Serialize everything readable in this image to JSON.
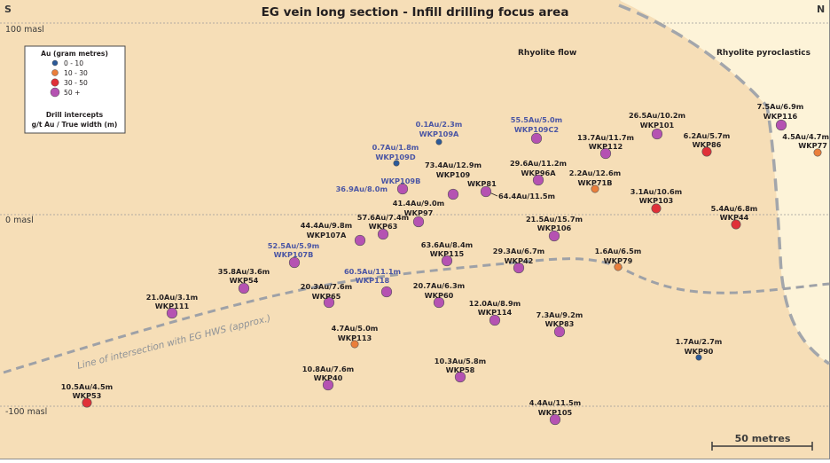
{
  "title": "EG vein long section - Infill drilling focus area",
  "orientation": {
    "left": "S",
    "right": "N"
  },
  "elevation_labels": [
    "100 masl",
    "0 masl",
    "-100 masl"
  ],
  "units": {
    "flow": "Rhyolite flow",
    "pyroclastics": "Rhyolite pyroclastics"
  },
  "fault_label": "Line of intersection with EG HWS (approx.)",
  "scale_bar": "50 metres",
  "legend": {
    "heading": "Au (gram metres)",
    "items": [
      {
        "label": "0 - 10",
        "color": "#2b5a9a"
      },
      {
        "label": "10 - 30",
        "color": "#ea7e3b"
      },
      {
        "label": "30 - 50",
        "color": "#e03038"
      },
      {
        "label": "50 +",
        "color": "#b552b2"
      }
    ],
    "intercepts_heading": "Drill intercepts",
    "intercepts_sub": "g/t Au / True width (m)"
  },
  "colors": {
    "frame_bg": "#fef6e4",
    "flow_fill": "#f6deb7",
    "pyro_fill": "#fdf3d8",
    "contact_line": "#a3a6ab",
    "label_blue": "#4b56a4"
  },
  "holes": [
    {
      "id": "WKP109A",
      "intercept": "0.1Au/2.3m",
      "grade_class": "0-10",
      "highlight": true
    },
    {
      "id": "WKP109C2",
      "intercept": "55.5Au/5.0m",
      "grade_class": "50+",
      "highlight": true
    },
    {
      "id": "WKP101",
      "intercept": "26.5Au/10.2m",
      "grade_class": "50+",
      "highlight": false
    },
    {
      "id": "WKP116",
      "intercept": "7.5Au/6.9m",
      "grade_class": "50+",
      "highlight": false
    },
    {
      "id": "WKP112",
      "intercept": "13.7Au/11.7m",
      "grade_class": "50+",
      "highlight": false
    },
    {
      "id": "WKP86",
      "intercept": "6.2Au/5.7m",
      "grade_class": "30-50",
      "highlight": false
    },
    {
      "id": "WKP77",
      "intercept": "4.5Au/4.7m",
      "grade_class": "10-30",
      "highlight": false
    },
    {
      "id": "WKP109D",
      "intercept": "0.7Au/1.8m",
      "grade_class": "0-10",
      "highlight": true
    },
    {
      "id": "WKP109",
      "intercept": "73.4Au/12.9m",
      "grade_class": "50+",
      "highlight": false
    },
    {
      "id": "WKP96A",
      "intercept": "29.6Au/11.2m",
      "grade_class": "50+",
      "highlight": false
    },
    {
      "id": "WKP71B",
      "intercept": "2.2Au/12.6m",
      "grade_class": "10-30",
      "highlight": false
    },
    {
      "id": "WKP109B",
      "intercept": "36.9Au/8.0m",
      "grade_class": "50+",
      "highlight": true
    },
    {
      "id": "WKP81",
      "intercept": "64.4Au/11.5m",
      "grade_class": "50+",
      "highlight": false
    },
    {
      "id": "WKP103",
      "intercept": "3.1Au/10.6m",
      "grade_class": "30-50",
      "highlight": false
    },
    {
      "id": "WKP97",
      "intercept": "41.4Au/9.0m",
      "grade_class": "50+",
      "highlight": false
    },
    {
      "id": "WKP63",
      "intercept": "57.6Au/7.4m",
      "grade_class": "50+",
      "highlight": false
    },
    {
      "id": "WKP107A",
      "intercept": "44.4Au/9.8m",
      "grade_class": "50+",
      "highlight": false
    },
    {
      "id": "WKP106",
      "intercept": "21.5Au/15.7m",
      "grade_class": "50+",
      "highlight": false
    },
    {
      "id": "WKP44",
      "intercept": "5.4Au/6.8m",
      "grade_class": "30-50",
      "highlight": false
    },
    {
      "id": "WKP107B",
      "intercept": "52.5Au/5.9m",
      "grade_class": "50+",
      "highlight": true
    },
    {
      "id": "WKP115",
      "intercept": "63.6Au/8.4m",
      "grade_class": "50+",
      "highlight": false
    },
    {
      "id": "WKP42",
      "intercept": "29.3Au/6.7m",
      "grade_class": "50+",
      "highlight": false
    },
    {
      "id": "WKP79",
      "intercept": "1.6Au/6.5m",
      "grade_class": "10-30",
      "highlight": false
    },
    {
      "id": "WKP54",
      "intercept": "35.8Au/3.6m",
      "grade_class": "50+",
      "highlight": false
    },
    {
      "id": "WKP118",
      "intercept": "60.5Au/11.1m",
      "grade_class": "50+",
      "highlight": true
    },
    {
      "id": "WKP65",
      "intercept": "20.3Au/7.6m",
      "grade_class": "50+",
      "highlight": false
    },
    {
      "id": "WKP60",
      "intercept": "20.7Au/6.3m",
      "grade_class": "50+",
      "highlight": false
    },
    {
      "id": "WKP111",
      "intercept": "21.0Au/3.1m",
      "grade_class": "50+",
      "highlight": false
    },
    {
      "id": "WKP114",
      "intercept": "12.0Au/8.9m",
      "grade_class": "50+",
      "highlight": false
    },
    {
      "id": "WKP83",
      "intercept": "7.3Au/9.2m",
      "grade_class": "50+",
      "highlight": false
    },
    {
      "id": "WKP113",
      "intercept": "4.7Au/5.0m",
      "grade_class": "10-30",
      "highlight": false
    },
    {
      "id": "WKP90",
      "intercept": "1.7Au/2.7m",
      "grade_class": "0-10",
      "highlight": false
    },
    {
      "id": "WKP40",
      "intercept": "10.8Au/7.6m",
      "grade_class": "50+",
      "highlight": false
    },
    {
      "id": "WKP58",
      "intercept": "10.3Au/5.8m",
      "grade_class": "50+",
      "highlight": false
    },
    {
      "id": "WKP53",
      "intercept": "10.5Au/4.5m",
      "grade_class": "30-50",
      "highlight": false
    },
    {
      "id": "WKP105",
      "intercept": "4.4Au/11.5m",
      "grade_class": "50+",
      "highlight": false
    }
  ]
}
